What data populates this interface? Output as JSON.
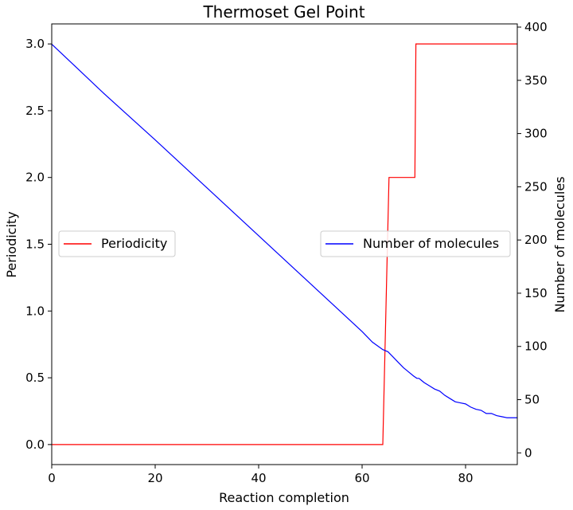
{
  "chart_data": {
    "type": "line",
    "title": "Thermoset Gel Point",
    "xlabel": "Reaction completion",
    "ylabel_left": "Periodicity",
    "ylabel_right": "Number of molecules",
    "xlim": [
      0,
      90
    ],
    "ylim_left": [
      -0.15,
      3.15
    ],
    "ylim_right": [
      -11,
      403
    ],
    "x_ticks": [
      0,
      20,
      40,
      60,
      80
    ],
    "y_left_ticks": [
      "0.0",
      "0.5",
      "1.0",
      "1.5",
      "2.0",
      "2.5",
      "3.0"
    ],
    "y_right_ticks": [
      0,
      50,
      100,
      150,
      200,
      250,
      300,
      350,
      400
    ],
    "grid": false,
    "series": [
      {
        "name": "Periodicity",
        "axis": "left",
        "color": "#ff0000",
        "points": [
          [
            0,
            0
          ],
          [
            64,
            0
          ],
          [
            65.2,
            2
          ],
          [
            70.2,
            2
          ],
          [
            70.4,
            3
          ],
          [
            90,
            3
          ]
        ]
      },
      {
        "name": "Number of molecules",
        "axis": "right",
        "color": "#0000ff",
        "points": [
          [
            0,
            384
          ],
          [
            5,
            361
          ],
          [
            10,
            338
          ],
          [
            20,
            294
          ],
          [
            30,
            249
          ],
          [
            40,
            204
          ],
          [
            50,
            159
          ],
          [
            60,
            114
          ],
          [
            62,
            104
          ],
          [
            64,
            97
          ],
          [
            65,
            95
          ],
          [
            66,
            90
          ],
          [
            67,
            85
          ],
          [
            68,
            80
          ],
          [
            69,
            76
          ],
          [
            70,
            72
          ],
          [
            70.6,
            70
          ],
          [
            71,
            70
          ],
          [
            71.5,
            68
          ],
          [
            72,
            66
          ],
          [
            73,
            63
          ],
          [
            74,
            60
          ],
          [
            75,
            58
          ],
          [
            76,
            54
          ],
          [
            77,
            51
          ],
          [
            78,
            48
          ],
          [
            79,
            47
          ],
          [
            80,
            46
          ],
          [
            81,
            43
          ],
          [
            82,
            41
          ],
          [
            83,
            40
          ],
          [
            84,
            37
          ],
          [
            85,
            37
          ],
          [
            86,
            35
          ],
          [
            87,
            34
          ],
          [
            88,
            33
          ],
          [
            89,
            33
          ],
          [
            90,
            33
          ]
        ]
      }
    ],
    "legends": [
      {
        "label": "Periodicity",
        "color": "#ff0000",
        "placement": "center-left"
      },
      {
        "label": "Number of molecules",
        "color": "#0000ff",
        "placement": "center-right"
      }
    ]
  }
}
